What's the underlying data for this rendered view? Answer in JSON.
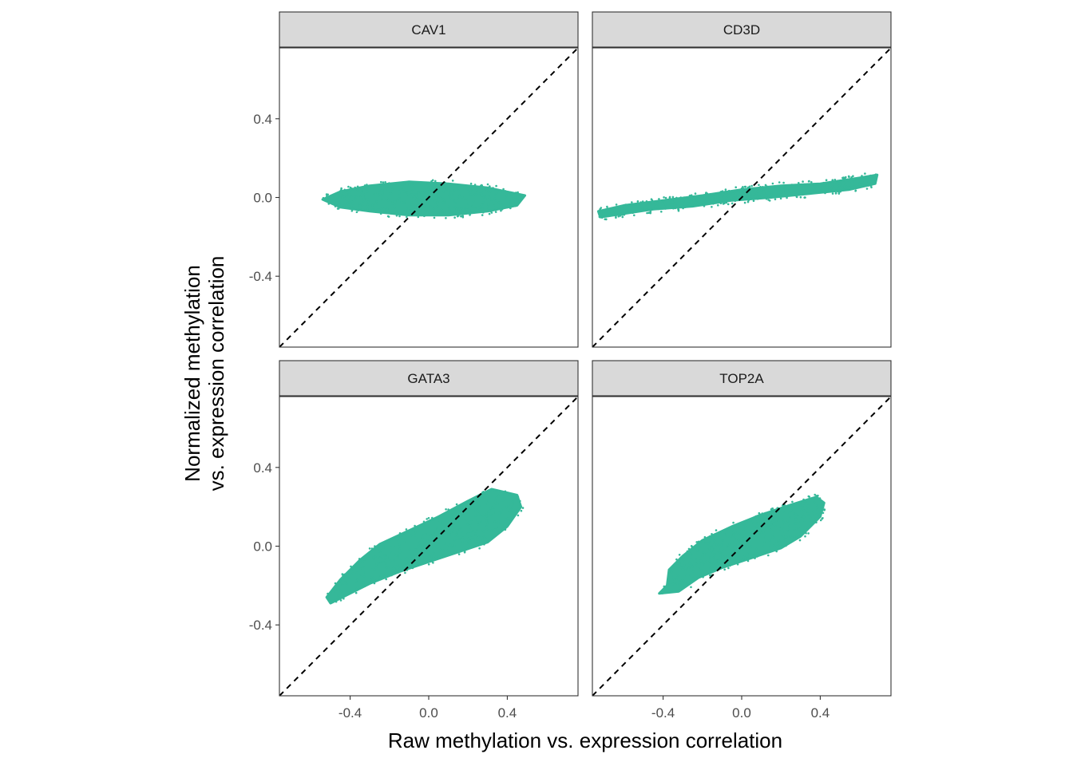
{
  "chart_data": {
    "type": "scatter",
    "layout": "facet-grid-2x2",
    "xlabel": "Raw methylation vs. expression correlation",
    "ylabel_lines": [
      "Normalized methylation",
      "vs. expression correlation"
    ],
    "xlim": [
      -0.76,
      0.76
    ],
    "ylim": [
      -0.76,
      0.76
    ],
    "x_ticks": [
      -0.4,
      0.0,
      0.4
    ],
    "x_tick_labels": [
      "-0.4",
      "0.0",
      "0.4"
    ],
    "y_ticks": [
      -0.4,
      0.0,
      0.4
    ],
    "y_tick_labels": [
      "-0.4",
      "0.0",
      "0.4"
    ],
    "reference_line": {
      "slope": 1,
      "intercept": 0,
      "style": "dashed",
      "color": "#000000"
    },
    "point_color": "#35b899",
    "grid": false,
    "legend": "none",
    "facets": [
      {
        "name": "CAV1",
        "x_range": [
          -0.54,
          0.49
        ],
        "cloud_polygon": [
          [
            -0.54,
            -0.01
          ],
          [
            -0.45,
            0.03
          ],
          [
            -0.3,
            0.06
          ],
          [
            -0.1,
            0.08
          ],
          [
            0.1,
            0.07
          ],
          [
            0.3,
            0.05
          ],
          [
            0.49,
            0.01
          ],
          [
            0.45,
            -0.04
          ],
          [
            0.3,
            -0.07
          ],
          [
            0.1,
            -0.09
          ],
          [
            -0.1,
            -0.09
          ],
          [
            -0.3,
            -0.07
          ],
          [
            -0.45,
            -0.05
          ]
        ]
      },
      {
        "name": "CD3D",
        "x_range": [
          -0.73,
          0.69
        ],
        "cloud_polygon": [
          [
            -0.73,
            -0.07
          ],
          [
            -0.6,
            -0.04
          ],
          [
            -0.4,
            -0.015
          ],
          [
            -0.2,
            0.01
          ],
          [
            0.0,
            0.04
          ],
          [
            0.2,
            0.06
          ],
          [
            0.4,
            0.07
          ],
          [
            0.6,
            0.1
          ],
          [
            0.69,
            0.115
          ],
          [
            0.68,
            0.07
          ],
          [
            0.55,
            0.04
          ],
          [
            0.35,
            0.02
          ],
          [
            0.15,
            0.0
          ],
          [
            -0.05,
            -0.015
          ],
          [
            -0.25,
            -0.045
          ],
          [
            -0.45,
            -0.06
          ],
          [
            -0.65,
            -0.09
          ],
          [
            -0.72,
            -0.1
          ]
        ]
      },
      {
        "name": "GATA3",
        "x_range": [
          -0.57,
          0.48
        ],
        "cloud_polygon": [
          [
            -0.52,
            -0.26
          ],
          [
            -0.45,
            -0.17
          ],
          [
            -0.35,
            -0.07
          ],
          [
            -0.25,
            0.01
          ],
          [
            -0.1,
            0.08
          ],
          [
            0.05,
            0.15
          ],
          [
            0.2,
            0.23
          ],
          [
            0.32,
            0.29
          ],
          [
            0.45,
            0.26
          ],
          [
            0.47,
            0.2
          ],
          [
            0.4,
            0.1
          ],
          [
            0.3,
            0.02
          ],
          [
            0.15,
            -0.03
          ],
          [
            0.0,
            -0.08
          ],
          [
            -0.15,
            -0.13
          ],
          [
            -0.3,
            -0.19
          ],
          [
            -0.42,
            -0.25
          ],
          [
            -0.5,
            -0.29
          ]
        ]
      },
      {
        "name": "TOP2A",
        "x_range": [
          -0.44,
          0.43
        ],
        "cloud_polygon": [
          [
            -0.38,
            -0.2
          ],
          [
            -0.37,
            -0.12
          ],
          [
            -0.3,
            -0.05
          ],
          [
            -0.2,
            0.03
          ],
          [
            -0.05,
            0.1
          ],
          [
            0.1,
            0.16
          ],
          [
            0.25,
            0.21
          ],
          [
            0.38,
            0.25
          ],
          [
            0.42,
            0.22
          ],
          [
            0.4,
            0.15
          ],
          [
            0.3,
            0.05
          ],
          [
            0.2,
            -0.01
          ],
          [
            0.05,
            -0.06
          ],
          [
            -0.1,
            -0.11
          ],
          [
            -0.22,
            -0.16
          ],
          [
            -0.32,
            -0.23
          ],
          [
            -0.42,
            -0.24
          ]
        ]
      }
    ]
  }
}
